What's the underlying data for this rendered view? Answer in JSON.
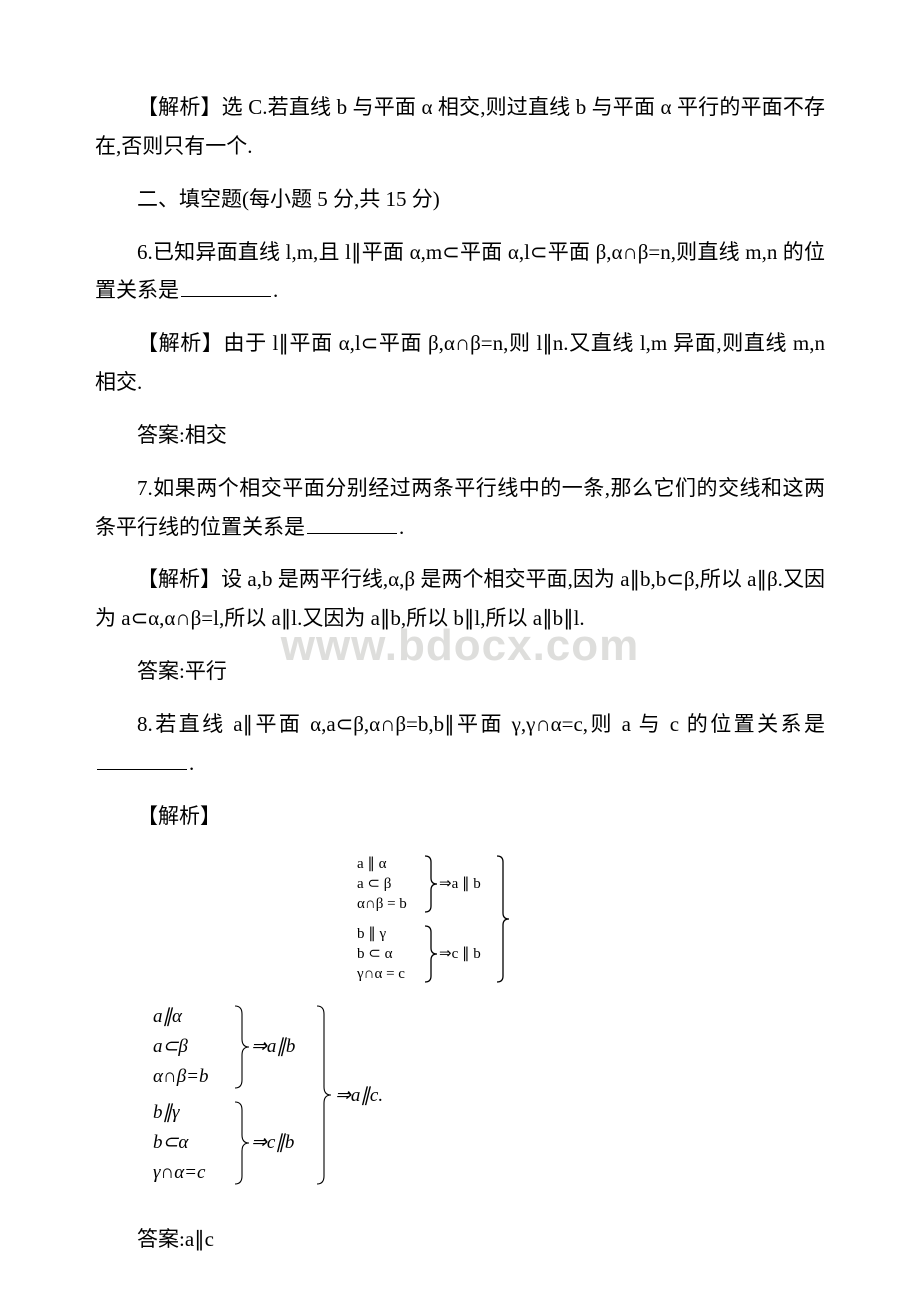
{
  "watermark": "www.bdocx.com",
  "p1": "【解析】选 C.若直线 b 与平面 α 相交,则过直线 b 与平面 α 平行的平面不存在,否则只有一个.",
  "p2": "二、填空题(每小题 5 分,共 15 分)",
  "p3_before": "6.已知异面直线 l,m,且 l∥平面 α,m⊂平面 α,l⊂平面 β,α∩β=n,则直线 m,n 的位置关系是",
  "p3_after": ".",
  "p4": "【解析】由于 l∥平面 α,l⊂平面 β,α∩β=n,则 l∥n.又直线 l,m 异面,则直线 m,n 相交.",
  "p5": "答案:相交",
  "p6_before": "7.如果两个相交平面分别经过两条平行线中的一条,那么它们的交线和这两条平行线的位置关系是",
  "p6_after": ".",
  "p7": "【解析】设 a,b 是两平行线,α,β 是两个相交平面,因为 a∥b,b⊂β,所以 a∥β.又因为 a⊂α,α∩β=l,所以 a∥l.又因为 a∥b,所以 b∥l,所以 a∥b∥l.",
  "p8": "答案:平行",
  "p9_before": "8.若直线 a∥平面 α,a⊂β,α∩β=b,b∥平面 γ,γ∩α=c,则 a 与 c 的位置关系是",
  "p9_after": ".",
  "p10": "【解析】",
  "p11": "答案:a∥c",
  "math1": {
    "font_family": "Cambria Math, serif",
    "text_color": "#000000",
    "line_color": "#000000",
    "font_size": 15,
    "lines_left": [
      "a ∥ α",
      "a ⊂ β",
      "α∩β = b",
      "b ∥ γ",
      "b ⊂ α",
      "γ∩α = c"
    ],
    "implies_top": "⇒a ∥ b",
    "implies_bottom": "⇒c ∥ b"
  },
  "math2": {
    "font_family": "Times New Roman, serif",
    "text_color": "#000000",
    "line_color": "#000000",
    "font_size": 19,
    "italic": true,
    "lines_left": [
      "a∥α",
      "a⊂β",
      "α∩β=b",
      "b∥γ",
      "b⊂α",
      "γ∩α=c"
    ],
    "implies_top": "⇒a∥b",
    "implies_bottom": "⇒c∥b",
    "implies_final": "⇒a∥c."
  }
}
